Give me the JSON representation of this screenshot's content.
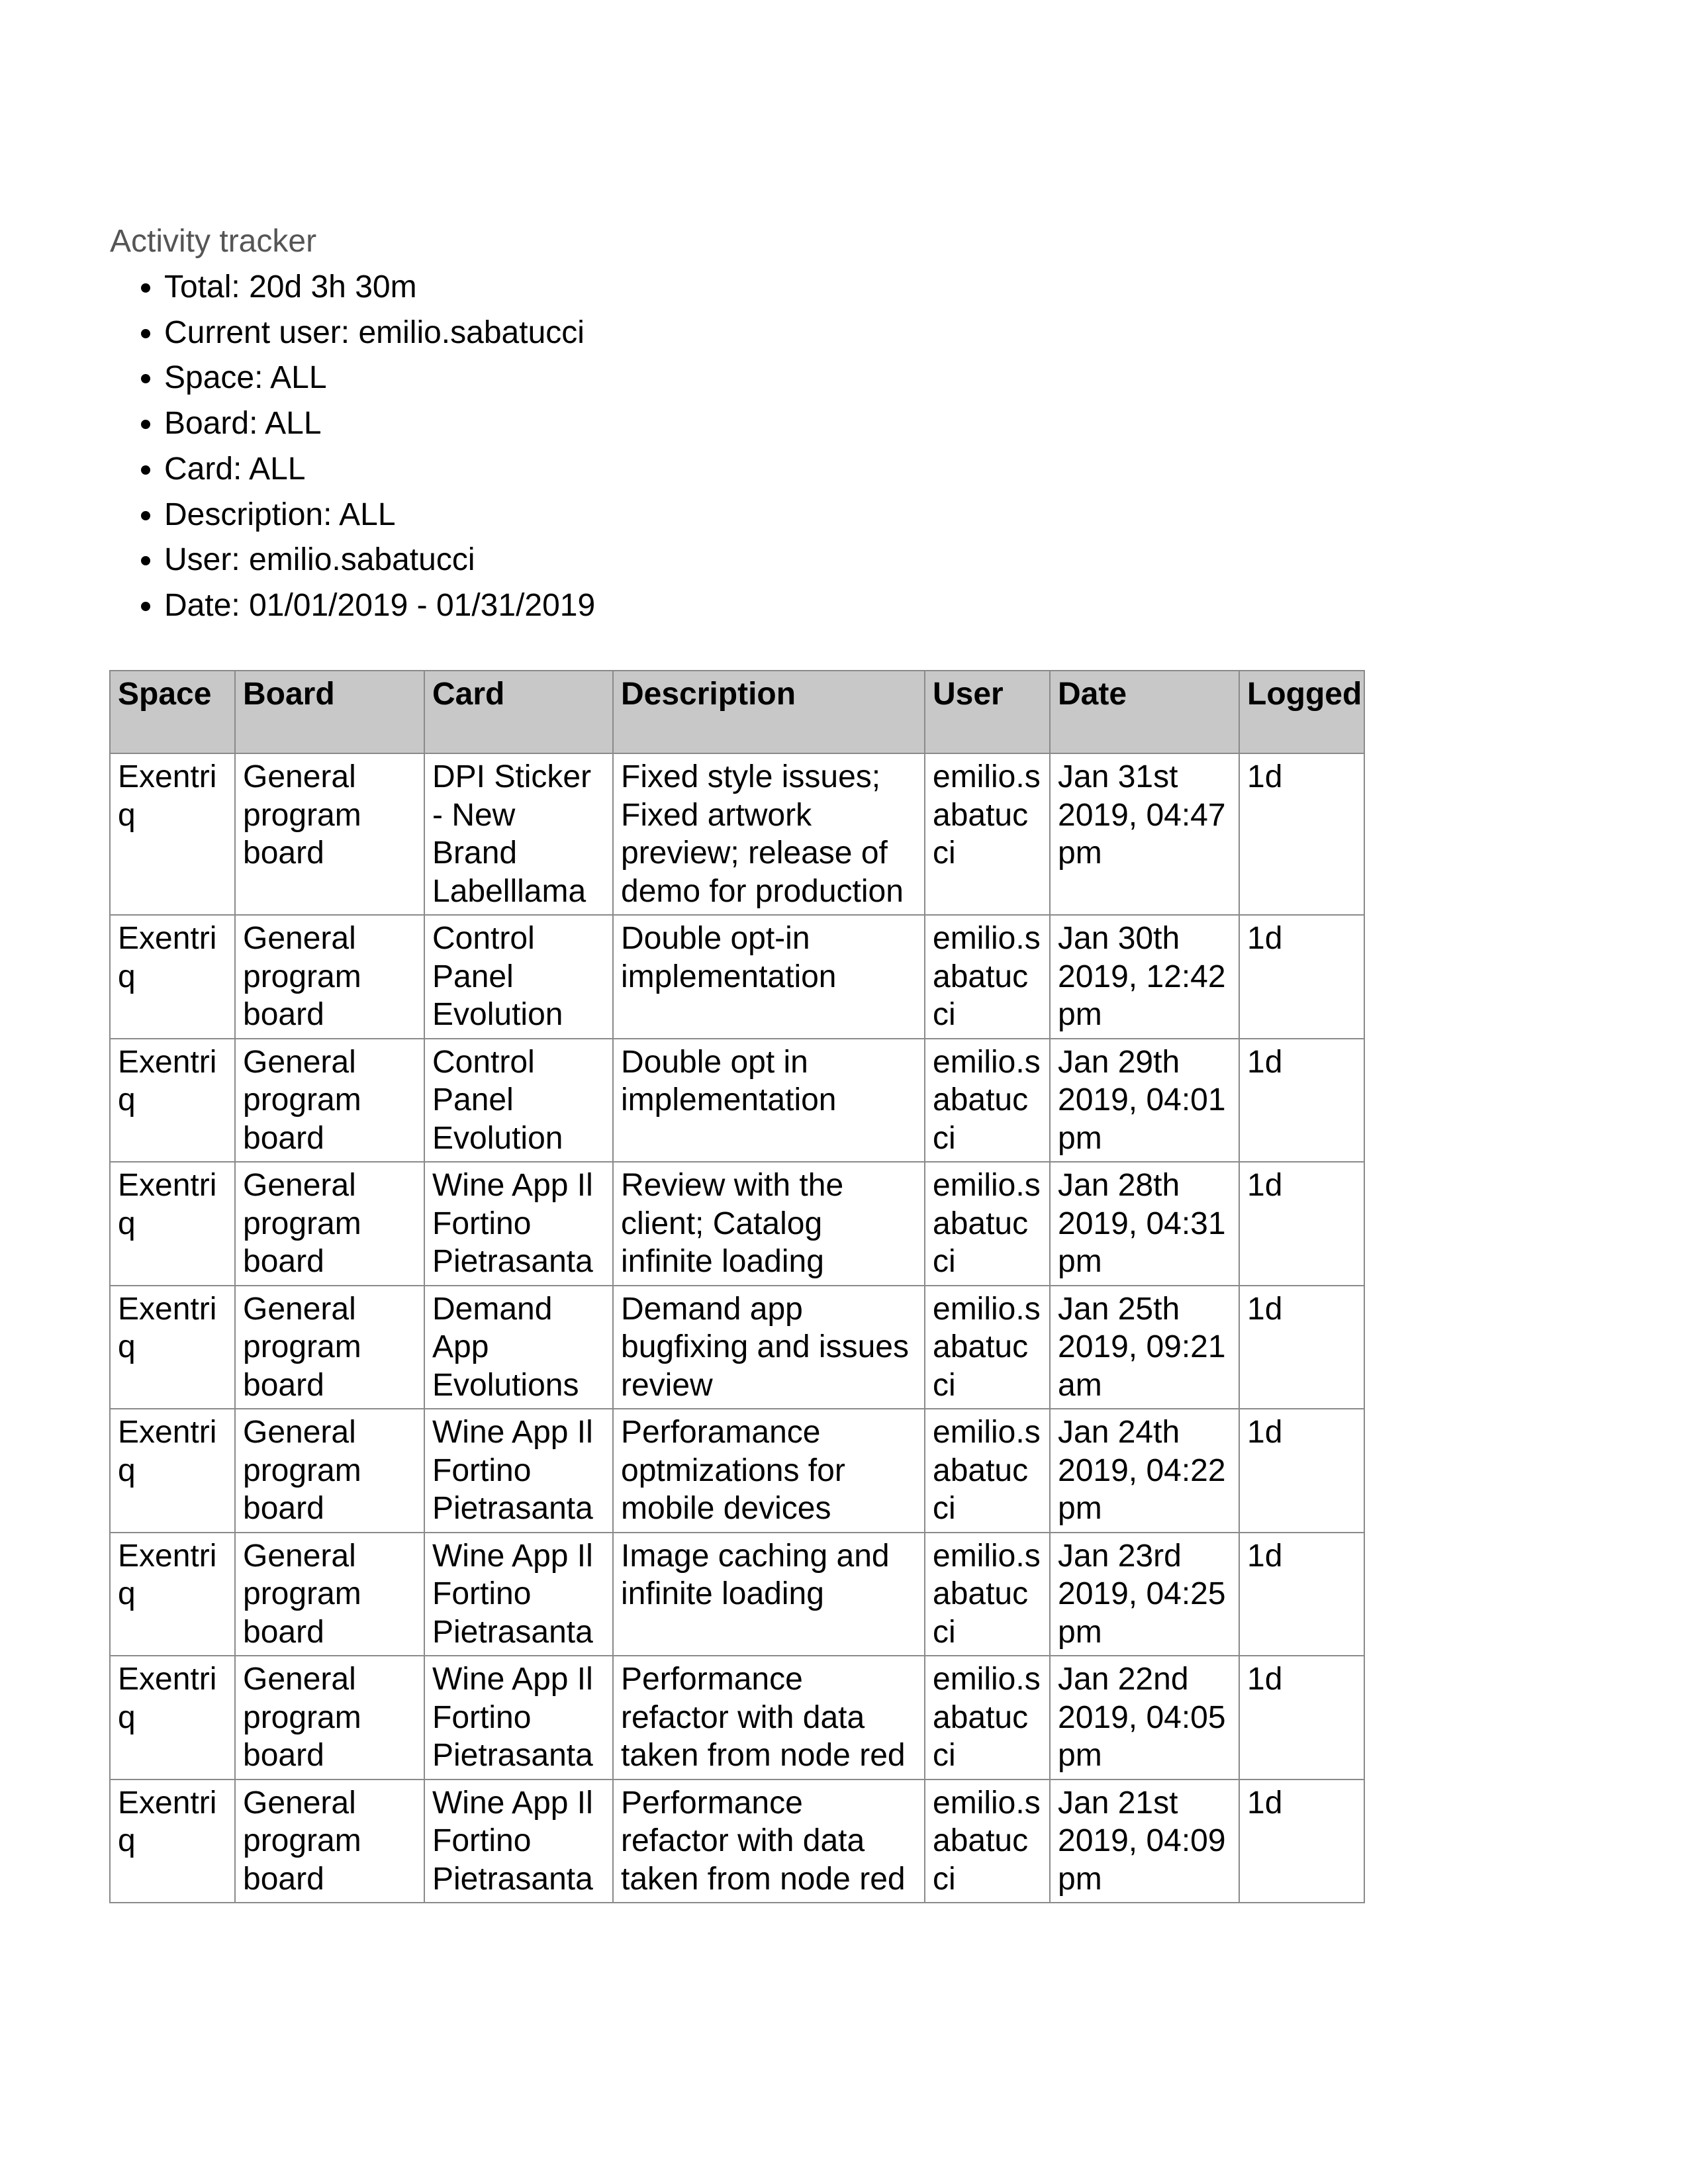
{
  "title": "Activity tracker",
  "filters": [
    "Total: 20d 3h 30m",
    "Current user: emilio.sabatucci",
    "Space: ALL",
    "Board: ALL",
    "Card: ALL",
    "Description: ALL",
    "User: emilio.sabatucci",
    "Date: 01/01/2019 - 01/31/2019"
  ],
  "table": {
    "headers": [
      "Space",
      "Board",
      "Card",
      "Description",
      "User",
      "Date",
      "Logged"
    ],
    "rows": [
      [
        "Exentriq",
        "General program board",
        "DPI Sticker - New Brand Labelllama",
        "Fixed style issues; Fixed artwork preview; release of demo for production",
        "emilio.sabatucci",
        "Jan 31st 2019, 04:47 pm",
        "1d"
      ],
      [
        "Exentriq",
        "General program board",
        "Control Panel Evolution",
        "Double opt-in implementation",
        "emilio.sabatucci",
        "Jan 30th 2019, 12:42 pm",
        "1d"
      ],
      [
        "Exentriq",
        "General program board",
        "Control Panel Evolution",
        "Double opt in implementation",
        "emilio.sabatucci",
        "Jan 29th 2019, 04:01 pm",
        "1d"
      ],
      [
        "Exentriq",
        "General program board",
        "Wine App Il Fortino Pietrasanta",
        "Review with the client; Catalog infinite loading",
        "emilio.sabatucci",
        "Jan 28th 2019, 04:31 pm",
        "1d"
      ],
      [
        "Exentriq",
        "General program board",
        "Demand App Evolutions",
        "Demand app bugfixing and issues review",
        "emilio.sabatucci",
        "Jan 25th 2019, 09:21 am",
        "1d"
      ],
      [
        "Exentriq",
        "General program board",
        "Wine App Il Fortino Pietrasanta",
        "Perforamance optmizations for mobile devices",
        "emilio.sabatucci",
        "Jan 24th 2019, 04:22 pm",
        "1d"
      ],
      [
        "Exentriq",
        "General program board",
        "Wine App Il Fortino Pietrasanta",
        "Image caching and infinite loading",
        "emilio.sabatucci",
        "Jan 23rd 2019, 04:25 pm",
        "1d"
      ],
      [
        "Exentriq",
        "General program board",
        "Wine App Il Fortino Pietrasanta",
        "Performance refactor with data taken from node red",
        "emilio.sabatucci",
        "Jan 22nd 2019, 04:05 pm",
        "1d"
      ],
      [
        "Exentriq",
        "General program board",
        "Wine App Il Fortino Pietrasanta",
        "Performance refactor with data taken from node red",
        "emilio.sabatucci",
        "Jan 21st 2019, 04:09 pm",
        "1d"
      ]
    ]
  }
}
